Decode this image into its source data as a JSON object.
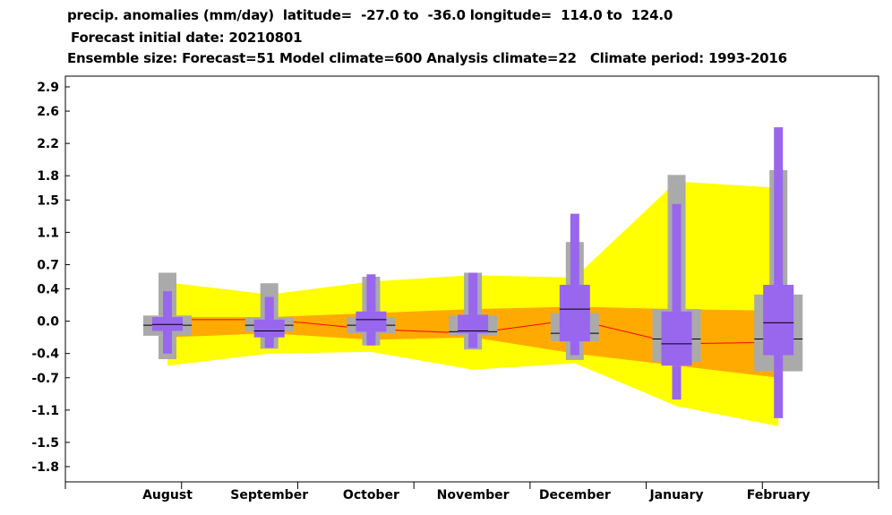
{
  "titles": {
    "line1": "precip. anomalies (mm/day)  latitude=  -27.0 to  -36.0 longitude=  114.0 to  124.0",
    "line2": "Forecast initial date: 20210801",
    "line3": "Ensemble size: Forecast=51 Model climate=600 Analysis climate=22   Climate period: 1993-2016"
  },
  "colors": {
    "climate_outer": "#ffff00",
    "climate_inner": "#ffaa00",
    "climate_median_line": "#ff0000",
    "model_box": "#aaaaaa",
    "forecast_box": "#9966ee",
    "median_tick": "#000000"
  },
  "chart_data": {
    "type": "box",
    "title": "precip. anomalies (mm/day)",
    "xlabel": "",
    "ylabel": "",
    "categories": [
      "August",
      "September",
      "October",
      "November",
      "December",
      "January",
      "February"
    ],
    "y_ticks": [
      2.9,
      2.6,
      2.2,
      1.8,
      1.5,
      1.1,
      0.7,
      0.4,
      0.0,
      -0.4,
      -0.7,
      -1.1,
      -1.5,
      -1.8
    ],
    "y_tick_labels": [
      "2.9",
      "2.6",
      "2.2",
      "1.8",
      "1.5",
      "1.1",
      "0.7",
      "0.4",
      "0.0",
      "-0.4",
      "-0.7",
      "-1.1",
      "-1.5",
      "-1.8"
    ],
    "ylim": [
      -1.9,
      3.0
    ],
    "grid": false,
    "series": [
      {
        "name": "Analysis climate",
        "kind": "band",
        "min": [
          -0.55,
          -0.4,
          -0.38,
          -0.6,
          -0.52,
          -1.05,
          -1.3
        ],
        "p25": [
          -0.2,
          -0.15,
          -0.23,
          -0.2,
          -0.4,
          -0.55,
          -0.7
        ],
        "median": [
          0.02,
          0.02,
          -0.1,
          -0.15,
          0.02,
          -0.28,
          -0.26
        ],
        "p75": [
          0.05,
          0.05,
          0.1,
          0.15,
          0.18,
          0.15,
          0.13
        ],
        "max": [
          0.48,
          0.33,
          0.49,
          0.57,
          0.54,
          1.73,
          1.65
        ]
      },
      {
        "name": "Model climate",
        "kind": "box",
        "min": [
          -0.47,
          -0.34,
          -0.3,
          -0.35,
          -0.48,
          -0.5,
          -0.62
        ],
        "p10": [
          -0.18,
          -0.13,
          -0.15,
          -0.18,
          -0.25,
          -0.5,
          -0.62
        ],
        "p25": [
          -0.18,
          -0.13,
          -0.15,
          -0.18,
          -0.25,
          -0.5,
          -0.62
        ],
        "median": [
          -0.05,
          -0.05,
          -0.05,
          -0.13,
          -0.15,
          -0.22,
          -0.22
        ],
        "p75": [
          0.07,
          0.05,
          0.05,
          0.07,
          0.1,
          0.15,
          0.33
        ],
        "p90": [
          0.07,
          0.05,
          0.05,
          0.07,
          0.1,
          0.15,
          0.33
        ],
        "max": [
          0.6,
          0.47,
          0.55,
          0.6,
          0.98,
          1.81,
          1.87
        ]
      },
      {
        "name": "Forecast",
        "kind": "box",
        "min": [
          -0.4,
          -0.33,
          -0.3,
          -0.33,
          -0.42,
          -0.97,
          -1.2
        ],
        "p10": [
          -0.12,
          -0.2,
          -0.13,
          -0.15,
          -0.25,
          -0.55,
          -0.42
        ],
        "p25": [
          -0.12,
          -0.2,
          -0.13,
          -0.15,
          -0.25,
          -0.55,
          -0.42
        ],
        "median": [
          -0.04,
          -0.12,
          0.02,
          -0.12,
          0.15,
          -0.28,
          -0.02
        ],
        "p75": [
          0.05,
          0.02,
          0.12,
          0.08,
          0.45,
          0.12,
          0.45
        ],
        "p90": [
          0.05,
          0.02,
          0.12,
          0.08,
          0.45,
          0.12,
          0.45
        ],
        "max": [
          0.37,
          0.3,
          0.58,
          0.6,
          1.33,
          1.45,
          2.4
        ]
      }
    ]
  }
}
